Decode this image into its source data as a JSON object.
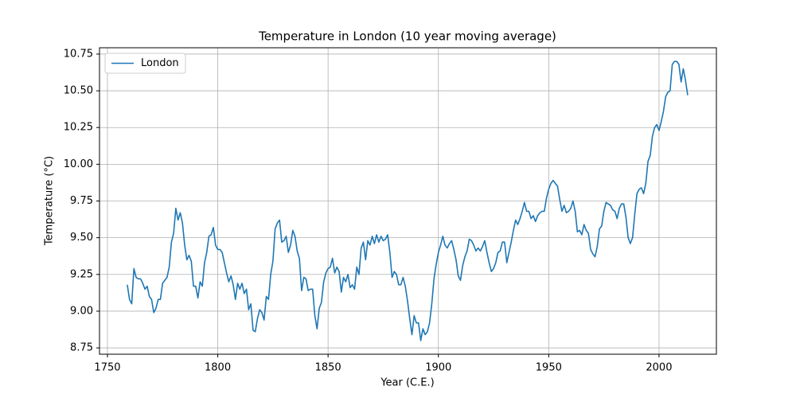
{
  "chart_data": {
    "type": "line",
    "title": "Temperature in London (10 year moving average)",
    "x_label": "Year (C.E.)",
    "y_label": "Temperature (°C)",
    "x": [
      1759,
      1760,
      1761,
      1762,
      1763,
      1764,
      1765,
      1766,
      1767,
      1768,
      1769,
      1770,
      1771,
      1772,
      1773,
      1774,
      1775,
      1776,
      1777,
      1778,
      1779,
      1780,
      1781,
      1782,
      1783,
      1784,
      1785,
      1786,
      1787,
      1788,
      1789,
      1790,
      1791,
      1792,
      1793,
      1794,
      1795,
      1796,
      1797,
      1798,
      1799,
      1800,
      1801,
      1802,
      1803,
      1804,
      1805,
      1806,
      1807,
      1808,
      1809,
      1810,
      1811,
      1812,
      1813,
      1814,
      1815,
      1816,
      1817,
      1818,
      1819,
      1820,
      1821,
      1822,
      1823,
      1824,
      1825,
      1826,
      1827,
      1828,
      1829,
      1830,
      1831,
      1832,
      1833,
      1834,
      1835,
      1836,
      1837,
      1838,
      1839,
      1840,
      1841,
      1842,
      1843,
      1844,
      1845,
      1846,
      1847,
      1848,
      1849,
      1850,
      1851,
      1852,
      1853,
      1854,
      1855,
      1856,
      1857,
      1858,
      1859,
      1860,
      1861,
      1862,
      1863,
      1864,
      1865,
      1866,
      1867,
      1868,
      1869,
      1870,
      1871,
      1872,
      1873,
      1874,
      1875,
      1876,
      1877,
      1878,
      1879,
      1880,
      1881,
      1882,
      1883,
      1884,
      1885,
      1886,
      1887,
      1888,
      1889,
      1890,
      1891,
      1892,
      1893,
      1894,
      1895,
      1896,
      1897,
      1898,
      1899,
      1900,
      1901,
      1902,
      1903,
      1904,
      1905,
      1906,
      1907,
      1908,
      1909,
      1910,
      1911,
      1912,
      1913,
      1914,
      1915,
      1916,
      1917,
      1918,
      1919,
      1920,
      1921,
      1922,
      1923,
      1924,
      1925,
      1926,
      1927,
      1928,
      1929,
      1930,
      1931,
      1932,
      1933,
      1934,
      1935,
      1936,
      1937,
      1938,
      1939,
      1940,
      1941,
      1942,
      1943,
      1944,
      1945,
      1946,
      1947,
      1948,
      1949,
      1950,
      1951,
      1952,
      1953,
      1954,
      1955,
      1956,
      1957,
      1958,
      1959,
      1960,
      1961,
      1962,
      1963,
      1964,
      1965,
      1966,
      1967,
      1968,
      1969,
      1970,
      1971,
      1972,
      1973,
      1974,
      1975,
      1976,
      1977,
      1978,
      1979,
      1980,
      1981,
      1982,
      1983,
      1984,
      1985,
      1986,
      1987,
      1988,
      1989,
      1990,
      1991,
      1992,
      1993,
      1994,
      1995,
      1996,
      1997,
      1998,
      1999,
      2000,
      2001,
      2002,
      2003,
      2004,
      2005,
      2006,
      2007,
      2008,
      2009,
      2010,
      2011,
      2012,
      2013
    ],
    "series": [
      {
        "name": "London",
        "color": "#1f77b4",
        "values": [
          9.18,
          9.08,
          9.05,
          9.29,
          9.23,
          9.22,
          9.22,
          9.19,
          9.15,
          9.17,
          9.1,
          9.08,
          8.99,
          9.02,
          9.08,
          9.08,
          9.19,
          9.21,
          9.23,
          9.3,
          9.47,
          9.53,
          9.7,
          9.62,
          9.67,
          9.6,
          9.45,
          9.35,
          9.38,
          9.34,
          9.17,
          9.17,
          9.09,
          9.2,
          9.17,
          9.33,
          9.4,
          9.51,
          9.52,
          9.57,
          9.45,
          9.42,
          9.42,
          9.4,
          9.33,
          9.26,
          9.2,
          9.24,
          9.18,
          9.08,
          9.19,
          9.15,
          9.19,
          9.12,
          9.15,
          9.01,
          9.05,
          8.87,
          8.86,
          8.95,
          9.01,
          8.99,
          8.94,
          9.1,
          9.08,
          9.25,
          9.34,
          9.56,
          9.6,
          9.62,
          9.47,
          9.48,
          9.51,
          9.4,
          9.45,
          9.55,
          9.51,
          9.41,
          9.36,
          9.14,
          9.23,
          9.22,
          9.14,
          9.15,
          9.15,
          8.97,
          8.88,
          9.02,
          9.06,
          9.2,
          9.26,
          9.29,
          9.3,
          9.36,
          9.26,
          9.3,
          9.27,
          9.13,
          9.23,
          9.2,
          9.25,
          9.16,
          9.18,
          9.15,
          9.3,
          9.25,
          9.43,
          9.47,
          9.35,
          9.48,
          9.45,
          9.51,
          9.46,
          9.52,
          9.47,
          9.51,
          9.48,
          9.49,
          9.52,
          9.4,
          9.23,
          9.27,
          9.25,
          9.18,
          9.18,
          9.23,
          9.17,
          9.07,
          8.95,
          8.84,
          8.97,
          8.92,
          8.92,
          8.8,
          8.88,
          8.84,
          8.86,
          8.92,
          9.05,
          9.22,
          9.32,
          9.4,
          9.45,
          9.51,
          9.45,
          9.43,
          9.46,
          9.48,
          9.42,
          9.35,
          9.24,
          9.21,
          9.31,
          9.37,
          9.41,
          9.49,
          9.48,
          9.45,
          9.41,
          9.43,
          9.41,
          9.44,
          9.48,
          9.4,
          9.33,
          9.27,
          9.29,
          9.33,
          9.4,
          9.41,
          9.47,
          9.47,
          9.33,
          9.4,
          9.47,
          9.55,
          9.62,
          9.59,
          9.63,
          9.68,
          9.74,
          9.68,
          9.68,
          9.63,
          9.65,
          9.61,
          9.65,
          9.67,
          9.68,
          9.68,
          9.77,
          9.83,
          9.87,
          9.89,
          9.87,
          9.85,
          9.76,
          9.68,
          9.72,
          9.67,
          9.68,
          9.7,
          9.75,
          9.68,
          9.54,
          9.55,
          9.52,
          9.59,
          9.55,
          9.53,
          9.42,
          9.39,
          9.37,
          9.44,
          9.56,
          9.58,
          9.68,
          9.74,
          9.73,
          9.72,
          9.69,
          9.68,
          9.63,
          9.7,
          9.73,
          9.73,
          9.64,
          9.5,
          9.46,
          9.5,
          9.66,
          9.8,
          9.83,
          9.84,
          9.8,
          9.87,
          10.02,
          10.06,
          10.19,
          10.25,
          10.27,
          10.23,
          10.29,
          10.36,
          10.46,
          10.49,
          10.5,
          10.68,
          10.7,
          10.7,
          10.68,
          10.56,
          10.65,
          10.57,
          10.47
        ]
      }
    ],
    "xlim": [
      1746.4,
      2026
    ],
    "ylim": [
      8.707,
      10.793
    ],
    "xticks": [
      1750,
      1800,
      1850,
      1900,
      1950,
      2000
    ],
    "yticks": [
      8.75,
      {
        "value": 9,
        "label": "9.00"
      },
      9.25,
      {
        "value": 9.5,
        "label": "9.50"
      },
      9.75,
      {
        "value": 10,
        "label": "10.00"
      },
      10.25,
      {
        "value": 10.5,
        "label": "10.50"
      },
      10.75
    ],
    "grid": true,
    "legend": "upper left"
  }
}
